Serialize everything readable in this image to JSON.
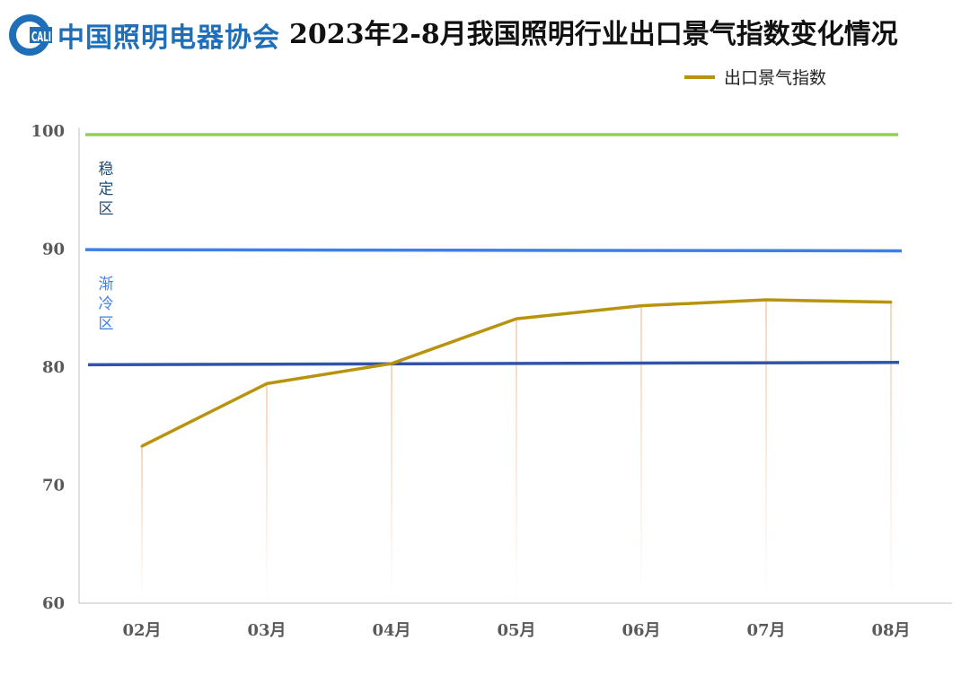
{
  "header": {
    "logo_abbr": "CALI",
    "logo_text": "中国照明电器协会",
    "title": "2023年2-8月我国照明行业出口景气指数变化情况"
  },
  "colors": {
    "series": "#b8930e",
    "drop_lines": "#f6c8a8",
    "stable_line": "#92d050",
    "cool_line": "#3f7ee8",
    "lower_line": "#2f55a8",
    "axis": "#bfbfbf",
    "logo_blue": "#1f6fb8"
  },
  "chart_data": {
    "type": "line",
    "categories": [
      "02月",
      "03月",
      "04月",
      "05月",
      "06月",
      "07月",
      "08月"
    ],
    "series": [
      {
        "name": "出口景气指数",
        "values": [
          73.3,
          78.6,
          80.3,
          84.1,
          85.2,
          85.7,
          85.5
        ]
      }
    ],
    "ylim": [
      60,
      100
    ],
    "yticks": [
      60,
      70,
      80,
      90,
      100
    ],
    "reference_lines": [
      {
        "value": 99.7,
        "color": "#92d050"
      },
      {
        "value": 89.9,
        "color": "#3f7ee8"
      },
      {
        "value": 80.3,
        "color": "#2f55a8"
      }
    ],
    "zones": [
      {
        "label": "稳定区",
        "color": "#1f4e79"
      },
      {
        "label": "渐冷区",
        "color": "#3f7ee8"
      }
    ],
    "legend_position": "top-right",
    "grid": false,
    "drop_lines": true
  }
}
